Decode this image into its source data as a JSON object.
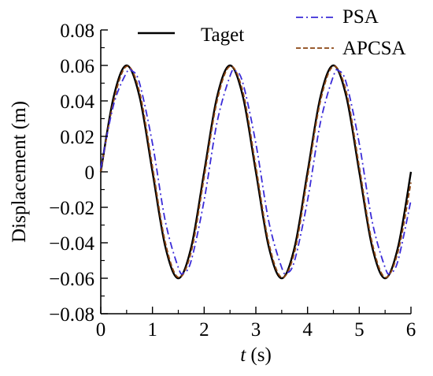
{
  "chart_data": {
    "type": "line",
    "xlabel_italic": "t",
    "xlabel_rest": " (s)",
    "ylabel": "Displacement (m)",
    "xlim": [
      0,
      6
    ],
    "ylim": [
      -0.08,
      0.08
    ],
    "x_ticks": [
      0,
      1,
      2,
      3,
      4,
      5,
      6
    ],
    "x_tick_labels": [
      "0",
      "1",
      "2",
      "3",
      "4",
      "5",
      "6"
    ],
    "y_ticks": [
      -0.08,
      -0.06,
      -0.04,
      -0.02,
      0,
      0.02,
      0.04,
      0.06,
      0.08
    ],
    "y_tick_labels": [
      "−0.08",
      "−0.06",
      "−0.04",
      "−0.02",
      "0",
      "0.02",
      "0.04",
      "0.06",
      "0.08"
    ],
    "grid": false,
    "legend_placement": "top",
    "series": [
      {
        "name": "Taget",
        "color": "#000000",
        "dash": "solid",
        "x": [
          0,
          0.25,
          0.5,
          0.75,
          1.0,
          1.25,
          1.5,
          1.75,
          2.0,
          2.25,
          2.5,
          2.75,
          3.0,
          3.25,
          3.5,
          3.75,
          4.0,
          4.25,
          4.5,
          4.75,
          5.0,
          5.25,
          5.5,
          5.75,
          6.0
        ],
        "y": [
          0,
          0.0424,
          0.06,
          0.0424,
          0,
          -0.0424,
          -0.06,
          -0.0424,
          0,
          0.0424,
          0.06,
          0.0424,
          0,
          -0.0424,
          -0.06,
          -0.0424,
          0,
          0.0424,
          0.06,
          0.0424,
          0,
          -0.0424,
          -0.06,
          -0.0424,
          0
        ]
      },
      {
        "name": "PSA",
        "color": "#3a2bd8",
        "dash": "dashdot",
        "x": [
          0,
          0.25,
          0.5,
          0.6,
          0.75,
          1.0,
          1.25,
          1.5,
          1.6,
          1.75,
          2.0,
          2.25,
          2.5,
          2.6,
          2.75,
          3.0,
          3.25,
          3.5,
          3.6,
          3.75,
          4.0,
          4.25,
          4.5,
          4.6,
          4.75,
          5.0,
          5.25,
          5.5,
          5.6,
          5.75,
          6.0
        ],
        "y": [
          0.002,
          0.038,
          0.056,
          0.057,
          0.05,
          0.016,
          -0.028,
          -0.054,
          -0.057,
          -0.05,
          -0.016,
          0.028,
          0.054,
          0.057,
          0.05,
          0.016,
          -0.028,
          -0.054,
          -0.057,
          -0.05,
          -0.016,
          0.028,
          0.054,
          0.057,
          0.05,
          0.016,
          -0.028,
          -0.054,
          -0.057,
          -0.05,
          -0.016
        ]
      },
      {
        "name": "APCSA",
        "color": "#8b4513",
        "dash": "dashed",
        "x": [
          0,
          0.25,
          0.5,
          0.75,
          1.0,
          1.25,
          1.5,
          1.75,
          2.0,
          2.25,
          2.5,
          2.75,
          3.0,
          3.25,
          3.5,
          3.75,
          4.0,
          4.25,
          4.5,
          4.75,
          5.0,
          5.25,
          5.5,
          5.75,
          6.0
        ],
        "y": [
          0,
          0.04,
          0.0595,
          0.045,
          0.003,
          -0.04,
          -0.0595,
          -0.045,
          -0.003,
          0.04,
          0.0595,
          0.045,
          0.003,
          -0.04,
          -0.0595,
          -0.045,
          -0.003,
          0.04,
          0.0595,
          0.045,
          0.003,
          -0.04,
          -0.0595,
          -0.045,
          -0.006
        ]
      }
    ]
  }
}
